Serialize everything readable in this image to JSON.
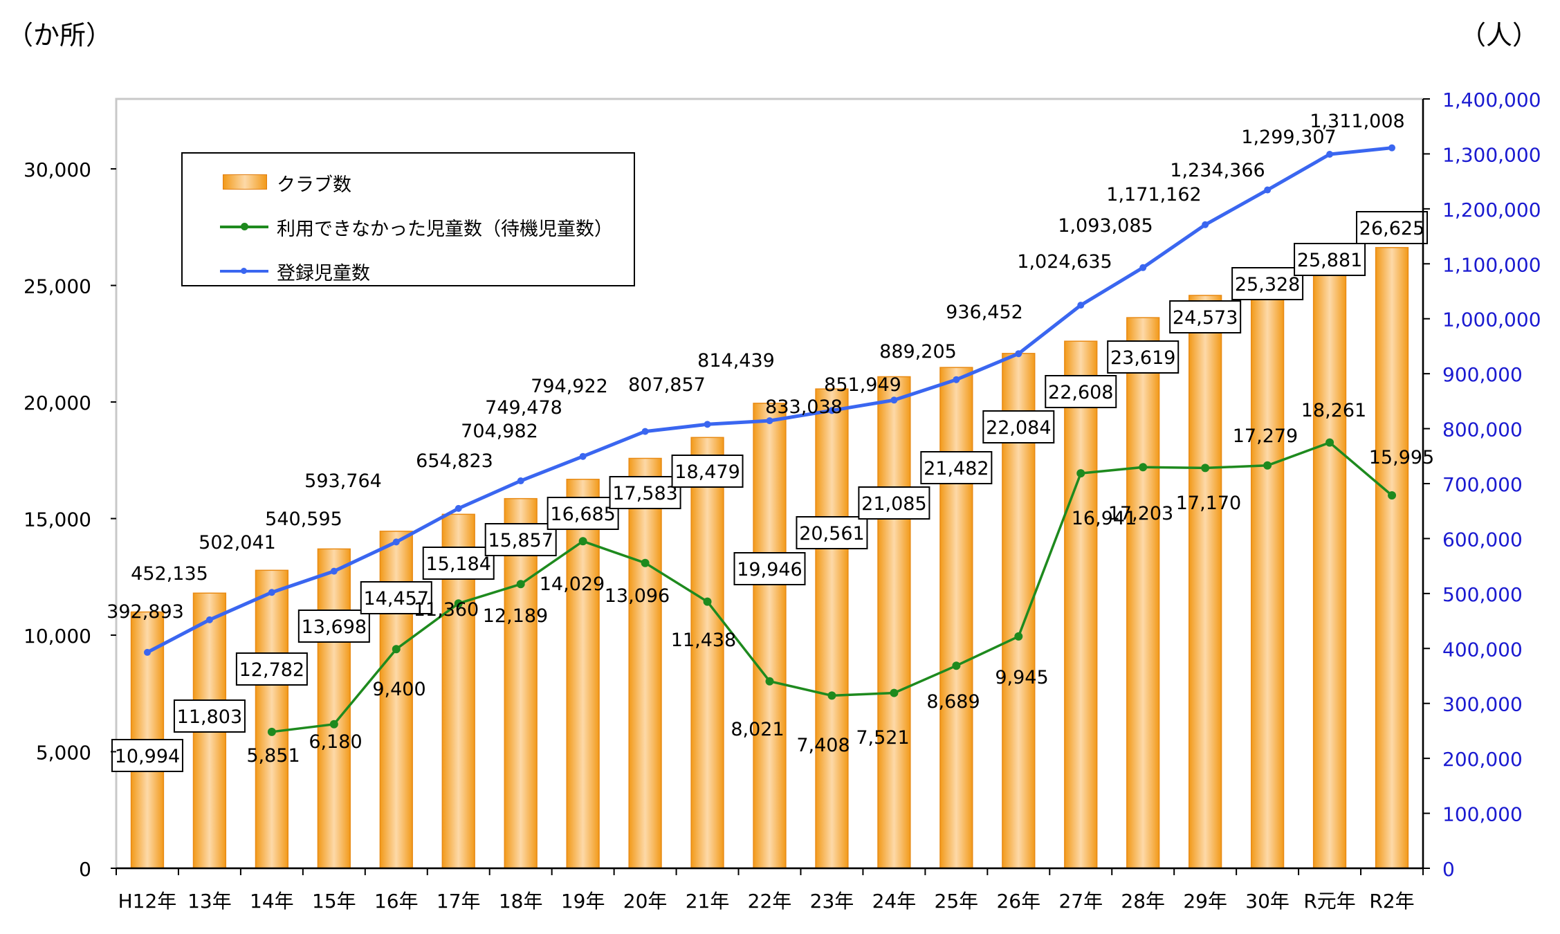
{
  "units": {
    "left": "（か所）",
    "right": "（人）"
  },
  "legend": {
    "clubs": "クラブ数",
    "waiting": "利用できなかった児童数（待機児童数）",
    "registered": "登録児童数"
  },
  "colors": {
    "bar": "#f29a1a",
    "bar_light": "#fdd9a8",
    "waiting": "#1e8a1e",
    "registered": "#3a66f0",
    "right_axis": "#1a1ad0"
  },
  "chart_data": {
    "type": "bar",
    "categories": [
      "H12年",
      "13年",
      "14年",
      "15年",
      "16年",
      "17年",
      "18年",
      "19年",
      "20年",
      "21年",
      "22年",
      "23年",
      "24年",
      "25年",
      "26年",
      "27年",
      "28年",
      "29年",
      "30年",
      "R元年",
      "R2年"
    ],
    "series": [
      {
        "name": "クラブ数",
        "type": "bar",
        "axis": "left",
        "values": [
          10994,
          11803,
          12782,
          13698,
          14457,
          15184,
          15857,
          16685,
          17583,
          18479,
          19946,
          20561,
          21085,
          21482,
          22084,
          22608,
          23619,
          24573,
          25328,
          25881,
          26625
        ],
        "labels": [
          "10,994",
          "11,803",
          "12,782",
          "13,698",
          "14,457",
          "15,184",
          "15,857",
          "16,685",
          "17,583",
          "18,479",
          "19,946",
          "20,561",
          "21,085",
          "21,482",
          "22,084",
          "22,608",
          "23,619",
          "24,573",
          "25,328",
          "25,881",
          "26,625"
        ]
      },
      {
        "name": "利用できなかった児童数（待機児童数）",
        "type": "line",
        "axis": "left",
        "values": [
          null,
          null,
          5851,
          6180,
          9400,
          11360,
          12189,
          14029,
          13096,
          11438,
          8021,
          7408,
          7521,
          8689,
          9945,
          16941,
          17203,
          17170,
          17279,
          18261,
          15995
        ],
        "labels": [
          null,
          null,
          "5,851",
          "6,180",
          "9,400",
          "11,360",
          "12,189",
          "14,029",
          "13,096",
          "11,438",
          "8,021",
          "7,408",
          "7,521",
          "8,689",
          "9,945",
          "16,941",
          "17,203",
          "17,170",
          "17,279",
          "18,261",
          "15,995"
        ]
      },
      {
        "name": "登録児童数",
        "type": "line",
        "axis": "right",
        "values": [
          392893,
          452135,
          502041,
          540595,
          593764,
          654823,
          704982,
          749478,
          794922,
          807857,
          814439,
          833038,
          851949,
          889205,
          936452,
          1024635,
          1093085,
          1171162,
          1234366,
          1299307,
          1311008
        ],
        "labels": [
          "392,893",
          "452,135",
          "502,041",
          "540,595",
          "593,764",
          "654,823",
          "704,982",
          "749,478",
          "794,922",
          "807,857",
          "814,439",
          "833,038",
          "851,949",
          "889,205",
          "936,452",
          "1,024,635",
          "1,093,085",
          "1,171,162",
          "1,234,366",
          "1,299,307",
          "1,311,008"
        ]
      }
    ],
    "y_left": {
      "min": 0,
      "max": 33000,
      "ticks": [
        0,
        5000,
        10000,
        15000,
        20000,
        25000,
        30000
      ],
      "tick_labels": [
        "0",
        "5,000",
        "10,000",
        "15,000",
        "20,000",
        "25,000",
        "30,000"
      ]
    },
    "y_right": {
      "min": 0,
      "max": 1400000,
      "ticks": [
        0,
        100000,
        200000,
        300000,
        400000,
        500000,
        600000,
        700000,
        800000,
        900000,
        1000000,
        1100000,
        1200000,
        1300000,
        1400000
      ],
      "tick_labels": [
        "0",
        "100,000",
        "200,000",
        "300,000",
        "400,000",
        "500,000",
        "600,000",
        "700,000",
        "800,000",
        "900,000",
        "1,000,000",
        "1,100,000",
        "1,200,000",
        "1,300,000",
        "1,400,000"
      ]
    },
    "legend_position": "top-left",
    "grid": false
  }
}
